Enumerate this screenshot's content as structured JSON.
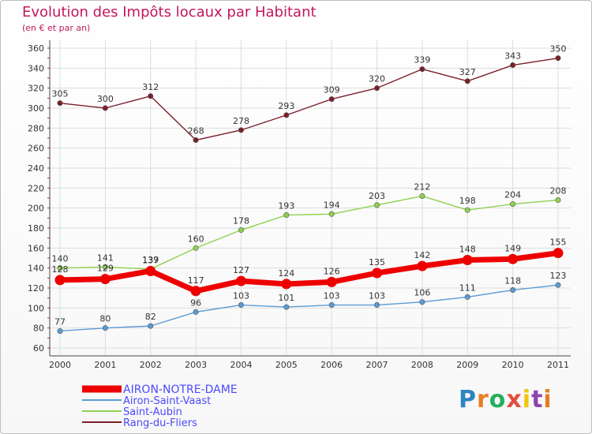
{
  "header": {
    "title": "Evolution des Impôts locaux par Habitant",
    "subtitle": "(en € et par an)"
  },
  "logo": {
    "text": "Proxiti",
    "colors": [
      "#2e86c1",
      "#e67e22",
      "#27ae60",
      "#e74c3c",
      "#f1c40f",
      "#8e44ad",
      "#e67e22"
    ]
  },
  "chart_data": {
    "type": "line",
    "title": "Evolution des Impôts locaux par Habitant",
    "subtitle": "(en € et par an)",
    "x": [
      2000,
      2001,
      2002,
      2003,
      2004,
      2005,
      2006,
      2007,
      2008,
      2009,
      2010,
      2011
    ],
    "ylim": [
      60,
      360
    ],
    "yticks": [
      60,
      80,
      100,
      120,
      140,
      160,
      180,
      200,
      220,
      240,
      260,
      280,
      300,
      320,
      340,
      360
    ],
    "grid": true,
    "legend_position": "bottom-left",
    "series": [
      {
        "name": "Rang-du-Fliers",
        "color": "#7b1f2a",
        "values": [
          305,
          300,
          312,
          268,
          278,
          293,
          309,
          320,
          339,
          327,
          343,
          350
        ]
      },
      {
        "name": "Saint-Aubin",
        "color": "#8fd14f",
        "values": [
          140,
          141,
          139,
          160,
          178,
          193,
          194,
          203,
          212,
          198,
          204,
          208
        ]
      },
      {
        "name": "Airon-Saint-Vaast",
        "color": "#5b9bd5",
        "values": [
          77,
          80,
          82,
          96,
          103,
          101,
          103,
          103,
          106,
          111,
          118,
          123
        ]
      },
      {
        "name": "AIRON-NOTRE-DAME",
        "color": "#ee0000",
        "bold": true,
        "values": [
          128,
          129,
          137,
          117,
          127,
          124,
          126,
          135,
          142,
          148,
          149,
          155
        ]
      }
    ],
    "legend": [
      {
        "name": "AIRON-NOTRE-DAME",
        "color": "#ee0000",
        "bold": true
      },
      {
        "name": "Airon-Saint-Vaast",
        "color": "#5b9bd5"
      },
      {
        "name": "Saint-Aubin",
        "color": "#8fd14f"
      },
      {
        "name": "Rang-du-Fliers",
        "color": "#7b1f2a"
      }
    ]
  }
}
